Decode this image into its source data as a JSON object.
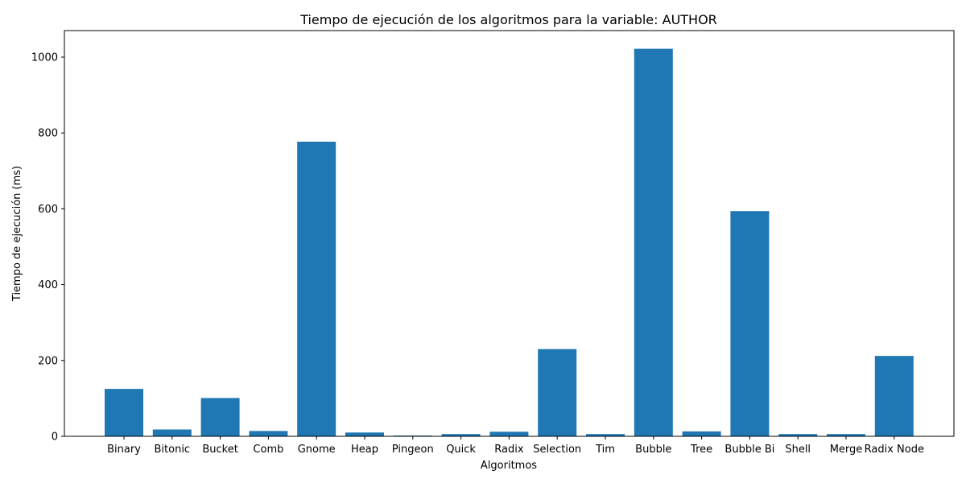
{
  "chart_data": {
    "type": "bar",
    "title": "Tiempo de ejecución de los algoritmos para la variable: AUTHOR",
    "xlabel": "Algoritmos",
    "ylabel": "Tiempo de ejecución (ms)",
    "categories": [
      "Binary",
      "Bitonic",
      "Bucket",
      "Comb",
      "Gnome",
      "Heap",
      "Pingeon",
      "Quick",
      "Radix",
      "Selection",
      "Tim",
      "Bubble",
      "Tree",
      "Bubble Bi",
      "Shell",
      "Merge",
      "Radix Node"
    ],
    "values": [
      125,
      18,
      101,
      14,
      777,
      10,
      2,
      6,
      12,
      230,
      6,
      1022,
      13,
      594,
      6,
      6,
      212
    ],
    "ylim": [
      0,
      1070
    ],
    "yticks": [
      0,
      200,
      400,
      600,
      800,
      1000
    ],
    "bar_color": "#1f77b4",
    "grid": false,
    "legend": "none"
  }
}
